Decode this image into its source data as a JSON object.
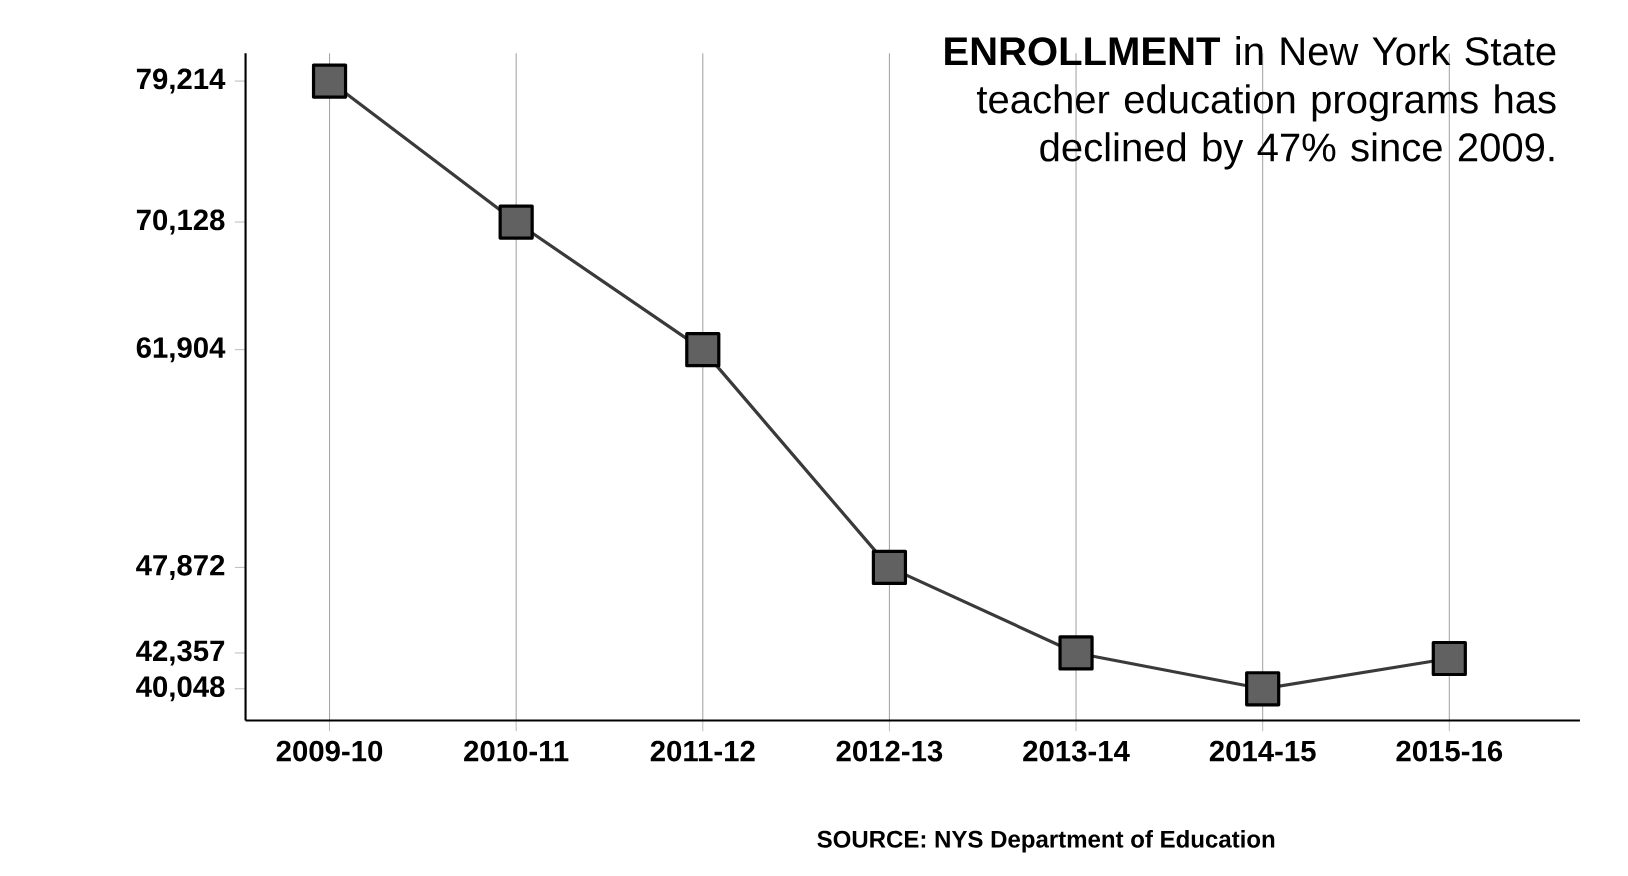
{
  "chart_data": {
    "type": "line",
    "title": "**ENROLLMENT** in New York State teacher education programs has declined by 47% since 2009.",
    "categories": [
      "2009-10",
      "2010-11",
      "2011-12",
      "2012-13",
      "2013-14",
      "2014-15",
      "2015-16"
    ],
    "series": [
      {
        "color": "#3a3a3a",
        "values": [
          79214,
          70128,
          61904,
          47872,
          42357,
          40048,
          42000
        ]
      }
    ],
    "ylim": [
      38000,
      81000
    ],
    "yticks": [
      {
        "value": 40048,
        "label": "40,048"
      },
      {
        "value": 42357,
        "label": "42,357"
      },
      {
        "value": 47872,
        "label": "47,872"
      },
      {
        "value": 61904,
        "label": "61,904"
      },
      {
        "value": 70128,
        "label": "70,128"
      },
      {
        "value": 79214,
        "label": "79,214"
      }
    ],
    "grid": "x",
    "marker": "square",
    "line_style": "solid",
    "annotations": [
      "SOURCE: NYS Department of Education"
    ]
  }
}
